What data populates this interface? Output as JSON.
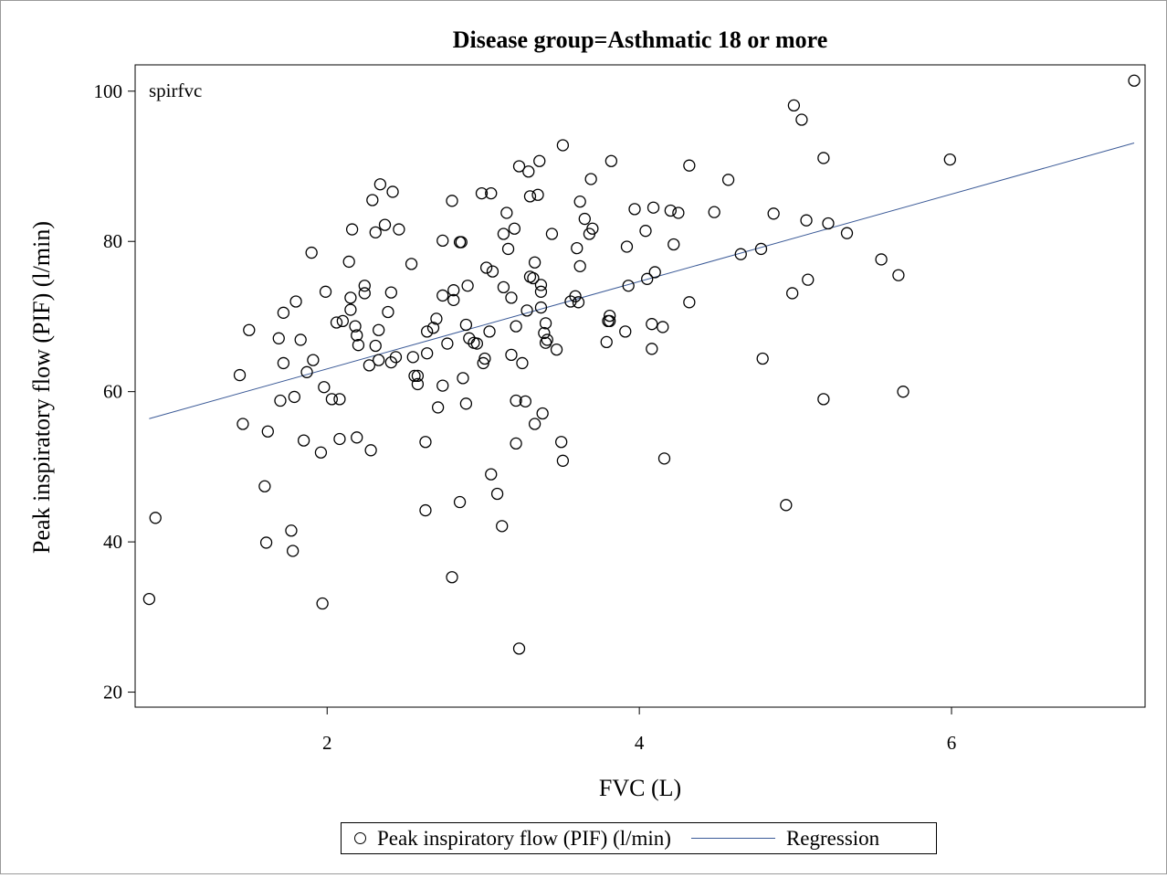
{
  "chart_data": {
    "type": "scatter",
    "title": "Disease group=Asthmatic 18 or more",
    "inset_label": "spirfvc",
    "xlabel": "FVC (L)",
    "ylabel": "Peak inspiratory flow (PIF) (l/min)",
    "xlim": [
      0.77,
      7.24
    ],
    "ylim": [
      18,
      103.5
    ],
    "xticks": [
      2,
      4,
      6
    ],
    "yticks": [
      20,
      40,
      60,
      80,
      100
    ],
    "grid": false,
    "legend_position": "bottom",
    "colors": {
      "points": "#000000",
      "regression": "#3b5a97"
    },
    "series": [
      {
        "name": "Peak inspiratory flow (PIF) (l/min)",
        "type": "scatter",
        "points": [
          [
            0.86,
            32.4
          ],
          [
            0.9,
            43.2
          ],
          [
            1.44,
            62.2
          ],
          [
            1.46,
            55.7
          ],
          [
            1.5,
            68.2
          ],
          [
            1.6,
            47.4
          ],
          [
            1.61,
            39.9
          ],
          [
            1.62,
            54.7
          ],
          [
            1.69,
            67.1
          ],
          [
            1.7,
            58.8
          ],
          [
            1.72,
            70.5
          ],
          [
            1.72,
            63.8
          ],
          [
            1.77,
            41.5
          ],
          [
            1.78,
            38.8
          ],
          [
            1.79,
            59.3
          ],
          [
            1.8,
            72.0
          ],
          [
            1.83,
            66.9
          ],
          [
            1.85,
            53.5
          ],
          [
            1.87,
            62.6
          ],
          [
            1.9,
            78.5
          ],
          [
            1.91,
            64.2
          ],
          [
            1.96,
            51.9
          ],
          [
            1.97,
            31.8
          ],
          [
            1.98,
            60.6
          ],
          [
            1.99,
            73.3
          ],
          [
            2.03,
            59.0
          ],
          [
            2.06,
            69.2
          ],
          [
            2.08,
            53.7
          ],
          [
            2.08,
            59.0
          ],
          [
            2.1,
            69.4
          ],
          [
            2.14,
            77.3
          ],
          [
            2.15,
            72.5
          ],
          [
            2.15,
            70.9
          ],
          [
            2.16,
            81.6
          ],
          [
            2.18,
            68.7
          ],
          [
            2.19,
            67.5
          ],
          [
            2.2,
            66.2
          ],
          [
            2.19,
            53.9
          ],
          [
            2.24,
            74.1
          ],
          [
            2.24,
            73.1
          ],
          [
            2.27,
            63.5
          ],
          [
            2.28,
            52.2
          ],
          [
            2.29,
            85.5
          ],
          [
            2.31,
            66.1
          ],
          [
            2.31,
            81.2
          ],
          [
            2.33,
            68.2
          ],
          [
            2.33,
            64.2
          ],
          [
            2.34,
            87.6
          ],
          [
            2.37,
            82.2
          ],
          [
            2.39,
            70.6
          ],
          [
            2.41,
            73.2
          ],
          [
            2.41,
            63.9
          ],
          [
            2.42,
            86.6
          ],
          [
            2.44,
            64.6
          ],
          [
            2.46,
            81.6
          ],
          [
            2.54,
            77.0
          ],
          [
            2.55,
            64.6
          ],
          [
            2.56,
            62.1
          ],
          [
            2.58,
            61.0
          ],
          [
            2.58,
            62.1
          ],
          [
            2.63,
            53.3
          ],
          [
            2.63,
            44.2
          ],
          [
            2.64,
            65.1
          ],
          [
            2.64,
            68.0
          ],
          [
            2.68,
            68.5
          ],
          [
            2.7,
            69.7
          ],
          [
            2.71,
            57.9
          ],
          [
            2.74,
            80.1
          ],
          [
            2.74,
            72.8
          ],
          [
            2.74,
            60.8
          ],
          [
            2.77,
            66.4
          ],
          [
            2.8,
            85.4
          ],
          [
            2.81,
            73.5
          ],
          [
            2.81,
            72.2
          ],
          [
            2.8,
            35.3
          ],
          [
            2.85,
            79.9
          ],
          [
            2.86,
            79.9
          ],
          [
            2.85,
            45.3
          ],
          [
            2.87,
            61.8
          ],
          [
            2.89,
            58.4
          ],
          [
            2.9,
            74.1
          ],
          [
            2.89,
            68.9
          ],
          [
            2.91,
            67.1
          ],
          [
            2.94,
            66.5
          ],
          [
            2.96,
            66.4
          ],
          [
            2.99,
            86.4
          ],
          [
            3.0,
            63.8
          ],
          [
            3.01,
            64.4
          ],
          [
            3.02,
            76.5
          ],
          [
            3.04,
            68.0
          ],
          [
            3.05,
            86.4
          ],
          [
            3.05,
            49.0
          ],
          [
            3.06,
            76.0
          ],
          [
            3.09,
            46.4
          ],
          [
            3.12,
            42.1
          ],
          [
            3.13,
            73.9
          ],
          [
            3.13,
            81.0
          ],
          [
            3.15,
            83.8
          ],
          [
            3.16,
            79.0
          ],
          [
            3.18,
            72.5
          ],
          [
            3.18,
            64.9
          ],
          [
            3.2,
            81.7
          ],
          [
            3.21,
            68.7
          ],
          [
            3.21,
            58.8
          ],
          [
            3.21,
            53.1
          ],
          [
            3.23,
            90.0
          ],
          [
            3.23,
            25.8
          ],
          [
            3.25,
            63.8
          ],
          [
            3.27,
            58.7
          ],
          [
            3.28,
            70.8
          ],
          [
            3.29,
            89.3
          ],
          [
            3.3,
            75.3
          ],
          [
            3.3,
            86.0
          ],
          [
            3.32,
            75.1
          ],
          [
            3.33,
            77.2
          ],
          [
            3.33,
            55.7
          ],
          [
            3.35,
            86.2
          ],
          [
            3.36,
            90.7
          ],
          [
            3.37,
            74.2
          ],
          [
            3.37,
            73.3
          ],
          [
            3.37,
            71.2
          ],
          [
            3.38,
            57.1
          ],
          [
            3.39,
            67.8
          ],
          [
            3.4,
            69.1
          ],
          [
            3.4,
            66.5
          ],
          [
            3.41,
            66.9
          ],
          [
            3.44,
            81.0
          ],
          [
            3.47,
            65.6
          ],
          [
            3.5,
            53.3
          ],
          [
            3.51,
            92.8
          ],
          [
            3.51,
            50.8
          ],
          [
            3.56,
            72.0
          ],
          [
            3.59,
            72.7
          ],
          [
            3.6,
            79.1
          ],
          [
            3.61,
            71.9
          ],
          [
            3.62,
            85.3
          ],
          [
            3.62,
            76.7
          ],
          [
            3.65,
            83.0
          ],
          [
            3.68,
            81.0
          ],
          [
            3.69,
            88.3
          ],
          [
            3.7,
            81.7
          ],
          [
            3.79,
            66.6
          ],
          [
            3.8,
            69.4
          ],
          [
            3.81,
            70.1
          ],
          [
            3.81,
            69.4
          ],
          [
            3.82,
            90.7
          ],
          [
            3.91,
            68.0
          ],
          [
            3.92,
            79.3
          ],
          [
            3.93,
            74.1
          ],
          [
            3.97,
            84.3
          ],
          [
            4.04,
            81.4
          ],
          [
            4.05,
            75.0
          ],
          [
            4.08,
            69.0
          ],
          [
            4.08,
            65.7
          ],
          [
            4.09,
            84.5
          ],
          [
            4.1,
            75.9
          ],
          [
            4.15,
            68.6
          ],
          [
            4.16,
            51.1
          ],
          [
            4.2,
            84.1
          ],
          [
            4.22,
            79.6
          ],
          [
            4.25,
            83.8
          ],
          [
            4.32,
            90.1
          ],
          [
            4.32,
            71.9
          ],
          [
            4.48,
            83.9
          ],
          [
            4.57,
            88.2
          ],
          [
            4.65,
            78.3
          ],
          [
            4.78,
            79.0
          ],
          [
            4.79,
            64.4
          ],
          [
            4.86,
            83.7
          ],
          [
            4.94,
            44.9
          ],
          [
            4.98,
            73.1
          ],
          [
            4.99,
            98.1
          ],
          [
            5.04,
            96.2
          ],
          [
            5.07,
            82.8
          ],
          [
            5.08,
            74.9
          ],
          [
            5.18,
            91.1
          ],
          [
            5.18,
            59.0
          ],
          [
            5.21,
            82.4
          ],
          [
            5.33,
            81.1
          ],
          [
            5.55,
            77.6
          ],
          [
            5.66,
            75.5
          ],
          [
            5.69,
            60.0
          ],
          [
            5.99,
            90.9
          ],
          [
            7.17,
            101.4
          ]
        ]
      },
      {
        "name": "Regression",
        "type": "line",
        "points": [
          [
            0.86,
            56.4
          ],
          [
            7.17,
            93.1
          ]
        ]
      }
    ]
  }
}
